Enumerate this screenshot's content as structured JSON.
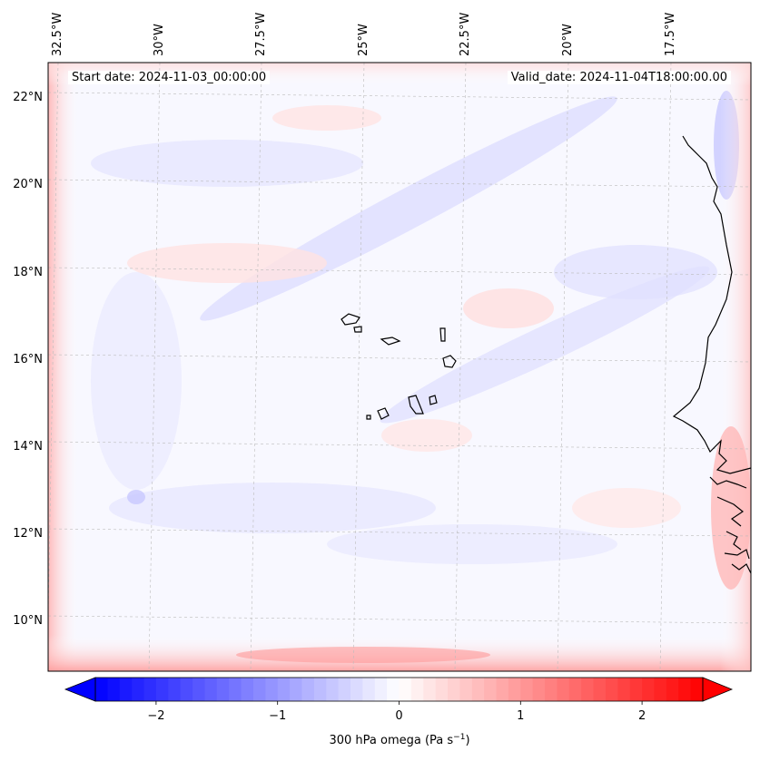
{
  "header": {
    "start_date": "Start date: 2024-11-03_00:00:00",
    "valid_date": "Valid_date: 2024-11-04T18:00:00.00"
  },
  "lon_labels": [
    "32.5°W",
    "30°W",
    "27.5°W",
    "25°W",
    "22.5°W",
    "20°W",
    "17.5°W"
  ],
  "lat_labels": [
    "22°N",
    "20°N",
    "18°N",
    "16°N",
    "14°N",
    "12°N",
    "10°N"
  ],
  "colorbar": {
    "ticks": [
      {
        "value": -2,
        "label": "−2"
      },
      {
        "value": -1,
        "label": "−1"
      },
      {
        "value": 0,
        "label": "0"
      },
      {
        "value": 1,
        "label": "1"
      },
      {
        "value": 2,
        "label": "2"
      }
    ],
    "vmin": -2.5,
    "vmax": 2.5,
    "label_prefix": "300 hPa omega (Pa s",
    "label_sup": "−1",
    "label_suffix": ")",
    "cmap": "bwr",
    "colors": {
      "neg": "#0000ff",
      "mid": "#ffffff",
      "pos": "#ff0000"
    }
  },
  "colors": {
    "coastline": "#000000",
    "gridline": "#bbbbbb"
  }
}
